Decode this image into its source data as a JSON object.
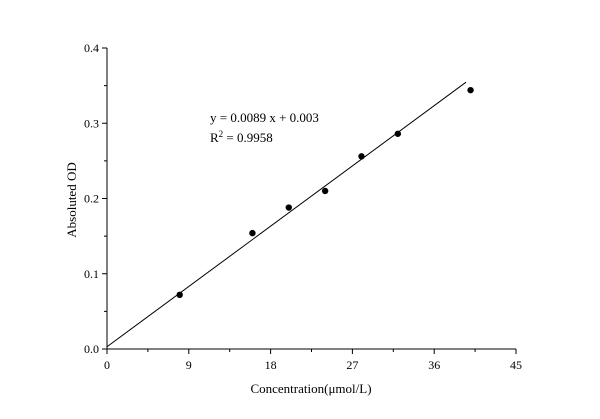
{
  "chart_data": {
    "type": "scatter",
    "xlabel": "Concentration(μmol/L)",
    "ylabel": "Absoluted OD",
    "xlim": [
      0,
      45
    ],
    "ylim": [
      0,
      0.4
    ],
    "x_ticks": [
      0,
      9,
      18,
      27,
      36,
      45
    ],
    "y_ticks": [
      0.0,
      0.1,
      0.2,
      0.3,
      0.4
    ],
    "x_tick_labels": [
      "0",
      "9",
      "18",
      "27",
      "36",
      "45"
    ],
    "y_tick_labels": [
      "0.0",
      "0.1",
      "0.2",
      "0.3",
      "0.4"
    ],
    "series": [
      {
        "x": [
          8,
          16,
          20,
          24,
          28,
          32,
          40
        ],
        "y": [
          0.072,
          0.154,
          0.188,
          0.21,
          0.256,
          0.286,
          0.344
        ]
      }
    ],
    "fit_line": {
      "slope": 0.0089,
      "intercept": 0.003,
      "x_range": [
        0,
        39.5
      ]
    },
    "annotation": {
      "equation": "y = 0.0089 x + 0.003",
      "r_label": "R",
      "r_exponent": "2",
      "r_value": " = 0.9958"
    },
    "grid": false,
    "legend": "none"
  }
}
